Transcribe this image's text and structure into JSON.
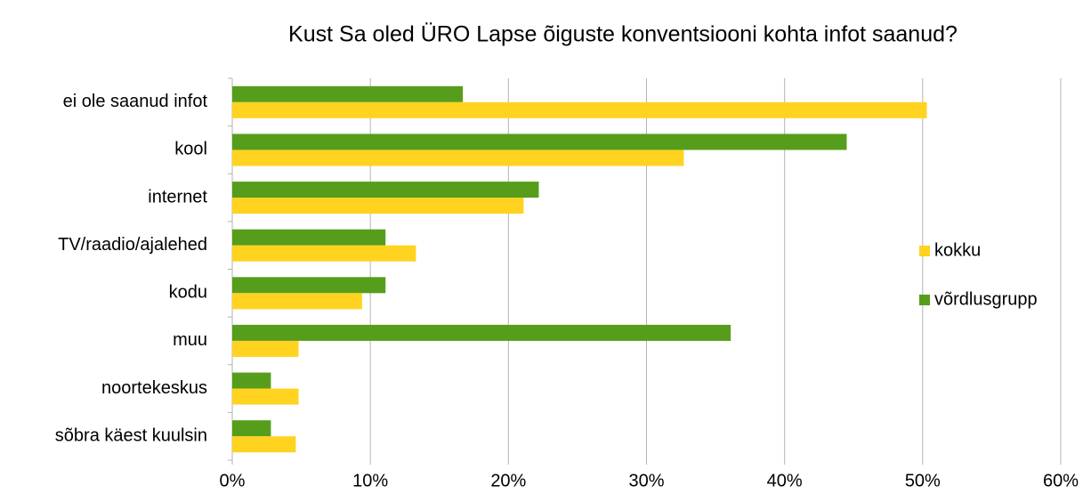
{
  "chart_data": {
    "type": "hbar",
    "title": "Kust Sa oled ÜRO Lapse õiguste konventsiooni kohta infot saanud?",
    "categories": [
      "ei ole saanud infot",
      "kool",
      "internet",
      "TV/raadio/ajalehed",
      "kodu",
      "muu",
      "noortekeskus",
      "sõbra käest kuulsin"
    ],
    "series": [
      {
        "name": "kokku",
        "color": "#ffd320",
        "values": [
          50.3,
          32.7,
          21.1,
          13.3,
          9.4,
          4.8,
          4.8,
          4.6
        ]
      },
      {
        "name": "võrdlusgrupp",
        "color": "#579d1c",
        "values": [
          16.7,
          44.5,
          22.2,
          11.1,
          11.1,
          36.1,
          2.8,
          2.8
        ]
      }
    ],
    "xlim": [
      0,
      60
    ],
    "xticks": [
      {
        "value": 0,
        "label": "0%"
      },
      {
        "value": 10,
        "label": "10%"
      },
      {
        "value": 20,
        "label": "20%"
      },
      {
        "value": 30,
        "label": "30%"
      },
      {
        "value": 40,
        "label": "40%"
      },
      {
        "value": 50,
        "label": "50%"
      },
      {
        "value": 60,
        "label": "60%"
      }
    ],
    "grid": true,
    "legend": "right"
  }
}
